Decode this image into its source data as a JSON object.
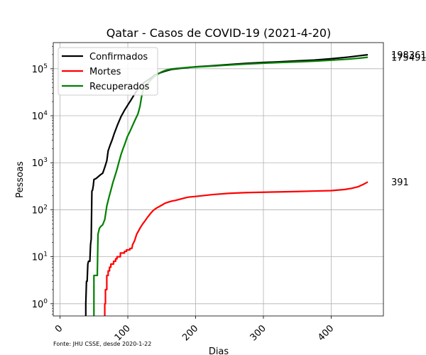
{
  "chart_data": {
    "type": "line",
    "title": "Qatar - Casos de COVID-19 (2021-4-20)",
    "xlabel": "Dias",
    "ylabel": "Pessoas",
    "yscale": "log",
    "xlim": [
      -10,
      477
    ],
    "ylim": [
      0.55,
      360000
    ],
    "xticks": [
      0,
      100,
      200,
      300,
      400
    ],
    "yticks": [
      {
        "value": 1,
        "label": "10^0"
      },
      {
        "value": 10,
        "label": "10^1"
      },
      {
        "value": 100,
        "label": "10^2"
      },
      {
        "value": 1000,
        "label": "10^3"
      },
      {
        "value": 10000,
        "label": "10^4"
      },
      {
        "value": 100000,
        "label": "10^5"
      }
    ],
    "grid": true,
    "legend_position": "top-left",
    "source": "Fonte: JHU CSSE, desde 2020-1-22",
    "series": [
      {
        "name": "Confirmados",
        "color": "#000000",
        "end_label": "198361",
        "points": [
          [
            38,
            0.5
          ],
          [
            38,
            1
          ],
          [
            39,
            3
          ],
          [
            40,
            3
          ],
          [
            41,
            7
          ],
          [
            42,
            8
          ],
          [
            43,
            8
          ],
          [
            44,
            8
          ],
          [
            45,
            18
          ],
          [
            46,
            24
          ],
          [
            47,
            250
          ],
          [
            48,
            262
          ],
          [
            49,
            320
          ],
          [
            50,
            440
          ],
          [
            53,
            460
          ],
          [
            56,
            500
          ],
          [
            60,
            560
          ],
          [
            63,
            600
          ],
          [
            66,
            800
          ],
          [
            69,
            1100
          ],
          [
            71,
            1800
          ],
          [
            74,
            2400
          ],
          [
            77,
            3100
          ],
          [
            80,
            4200
          ],
          [
            85,
            6500
          ],
          [
            90,
            9600
          ],
          [
            95,
            13000
          ],
          [
            100,
            17000
          ],
          [
            105,
            22000
          ],
          [
            110,
            29000
          ],
          [
            115,
            37000
          ],
          [
            120,
            45000
          ],
          [
            125,
            52000
          ],
          [
            130,
            58000
          ],
          [
            135,
            65000
          ],
          [
            140,
            74000
          ],
          [
            145,
            79000
          ],
          [
            150,
            84000
          ],
          [
            155,
            89000
          ],
          [
            160,
            93000
          ],
          [
            165,
            97000
          ],
          [
            170,
            99000
          ],
          [
            180,
            103000
          ],
          [
            190,
            106000
          ],
          [
            200,
            110000
          ],
          [
            225,
            116000
          ],
          [
            250,
            123000
          ],
          [
            275,
            130000
          ],
          [
            300,
            136000
          ],
          [
            325,
            141000
          ],
          [
            350,
            147000
          ],
          [
            375,
            153000
          ],
          [
            400,
            163000
          ],
          [
            425,
            177000
          ],
          [
            440,
            188000
          ],
          [
            454,
            198361
          ]
        ]
      },
      {
        "name": "Mortes",
        "color": "#ff0000",
        "end_label": "391",
        "points": [
          [
            66,
            0.5
          ],
          [
            66,
            1
          ],
          [
            67,
            1
          ],
          [
            67,
            2
          ],
          [
            69,
            2
          ],
          [
            69,
            4
          ],
          [
            71,
            4
          ],
          [
            71,
            5
          ],
          [
            73,
            5
          ],
          [
            73,
            6
          ],
          [
            75,
            6
          ],
          [
            75,
            7
          ],
          [
            79,
            7
          ],
          [
            79,
            8
          ],
          [
            82,
            8
          ],
          [
            82,
            9
          ],
          [
            84,
            9
          ],
          [
            84,
            10
          ],
          [
            89,
            10
          ],
          [
            89,
            12
          ],
          [
            95,
            12
          ],
          [
            95,
            13
          ],
          [
            98,
            13
          ],
          [
            98,
            14
          ],
          [
            103,
            14
          ],
          [
            103,
            15
          ],
          [
            106,
            15
          ],
          [
            107,
            18
          ],
          [
            110,
            22
          ],
          [
            113,
            30
          ],
          [
            116,
            36
          ],
          [
            119,
            43
          ],
          [
            122,
            50
          ],
          [
            125,
            57
          ],
          [
            128,
            66
          ],
          [
            131,
            75
          ],
          [
            134,
            85
          ],
          [
            137,
            95
          ],
          [
            140,
            103
          ],
          [
            143,
            110
          ],
          [
            146,
            116
          ],
          [
            150,
            125
          ],
          [
            155,
            138
          ],
          [
            160,
            146
          ],
          [
            165,
            153
          ],
          [
            170,
            158
          ],
          [
            175,
            165
          ],
          [
            180,
            172
          ],
          [
            185,
            180
          ],
          [
            190,
            186
          ],
          [
            200,
            192
          ],
          [
            225,
            210
          ],
          [
            250,
            224
          ],
          [
            275,
            232
          ],
          [
            300,
            236
          ],
          [
            325,
            240
          ],
          [
            350,
            244
          ],
          [
            375,
            250
          ],
          [
            400,
            255
          ],
          [
            420,
            270
          ],
          [
            430,
            285
          ],
          [
            440,
            310
          ],
          [
            448,
            350
          ],
          [
            454,
            391
          ]
        ]
      },
      {
        "name": "Recuperados",
        "color": "#008000",
        "end_label": "175491",
        "points": [
          [
            50,
            0.5
          ],
          [
            50,
            4
          ],
          [
            55,
            4
          ],
          [
            56,
            30
          ],
          [
            58,
            40
          ],
          [
            60,
            44
          ],
          [
            63,
            48
          ],
          [
            66,
            62
          ],
          [
            69,
            120
          ],
          [
            72,
            180
          ],
          [
            75,
            260
          ],
          [
            78,
            380
          ],
          [
            81,
            520
          ],
          [
            84,
            720
          ],
          [
            87,
            1050
          ],
          [
            90,
            1500
          ],
          [
            93,
            2000
          ],
          [
            96,
            2600
          ],
          [
            99,
            3500
          ],
          [
            103,
            4600
          ],
          [
            107,
            6200
          ],
          [
            111,
            8300
          ],
          [
            115,
            11000
          ],
          [
            118,
            16000
          ],
          [
            120,
            24000
          ],
          [
            122,
            33000
          ],
          [
            126,
            42000
          ],
          [
            130,
            50000
          ],
          [
            135,
            60000
          ],
          [
            140,
            70000
          ],
          [
            145,
            78000
          ],
          [
            150,
            86000
          ],
          [
            155,
            92000
          ],
          [
            160,
            96000
          ],
          [
            165,
            99000
          ],
          [
            170,
            101000
          ],
          [
            180,
            104000
          ],
          [
            190,
            107000
          ],
          [
            200,
            109000
          ],
          [
            225,
            114000
          ],
          [
            250,
            120000
          ],
          [
            275,
            126000
          ],
          [
            300,
            131000
          ],
          [
            325,
            136000
          ],
          [
            350,
            140000
          ],
          [
            375,
            145000
          ],
          [
            400,
            152000
          ],
          [
            425,
            160000
          ],
          [
            440,
            167000
          ],
          [
            454,
            175491
          ]
        ]
      }
    ]
  }
}
